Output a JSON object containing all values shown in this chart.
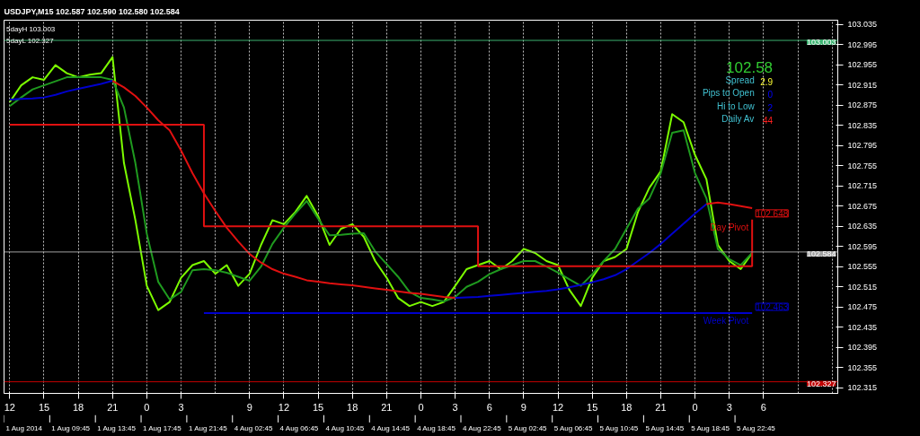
{
  "chart_data": {
    "type": "line",
    "title": "USDJPY,M15  102.587 102.590 102.580 102.584",
    "categories": [
      "12",
      null,
      null,
      "15",
      null,
      null,
      "18",
      null,
      null,
      "21",
      null,
      null,
      "0",
      null,
      null,
      "3",
      null,
      null,
      null,
      null,
      null,
      "9",
      null,
      null,
      "12",
      null,
      null,
      "15",
      null,
      null,
      "18",
      null,
      null,
      "21",
      null,
      null,
      "0",
      null,
      null,
      "3",
      null,
      null,
      "6",
      null,
      null,
      "9",
      null,
      null,
      "12",
      null,
      null,
      "15",
      null,
      null,
      "18",
      null,
      null,
      "21",
      null,
      null,
      "0",
      null,
      null,
      "3",
      null,
      null,
      "6",
      null,
      null,
      null,
      null,
      null,
      null
    ],
    "ylim": [
      102.304,
      103.043
    ],
    "yticks": [
      102.315,
      102.355,
      102.395,
      102.435,
      102.475,
      102.515,
      102.555,
      102.595,
      102.635,
      102.675,
      102.715,
      102.755,
      102.795,
      102.835,
      102.875,
      102.915,
      102.955,
      102.995,
      103.035
    ],
    "grid": "x",
    "line_style": "solid",
    "series": [
      {
        "color": "#7cfc00",
        "values": [
          102.881,
          102.914,
          102.93,
          102.925,
          102.954,
          102.938,
          102.93,
          102.935,
          102.938,
          102.97,
          102.76,
          102.647,
          102.517,
          102.469,
          102.485,
          102.533,
          102.558,
          102.566,
          102.541,
          102.558,
          102.517,
          102.541,
          102.598,
          102.647,
          102.639,
          102.663,
          102.695,
          102.655,
          102.598,
          102.63,
          102.639,
          102.614,
          102.566,
          102.533,
          102.493,
          102.477,
          102.485,
          102.477,
          102.485,
          102.517,
          102.55,
          102.558,
          102.566,
          102.55,
          102.566,
          102.59,
          102.582,
          102.566,
          102.558,
          102.509,
          102.477,
          102.533,
          102.566,
          102.574,
          102.59,
          102.663,
          102.711,
          102.744,
          102.857,
          102.841,
          102.776,
          102.728,
          102.598,
          102.566,
          102.55,
          102.582,
          null,
          null,
          null,
          null,
          null,
          null,
          null
        ]
      },
      {
        "color": "#1f9a1f",
        "values": [
          102.873,
          102.89,
          102.906,
          102.914,
          102.922,
          102.93,
          102.93,
          102.93,
          102.93,
          102.925,
          102.87,
          102.76,
          102.62,
          102.525,
          102.49,
          102.505,
          102.548,
          102.55,
          102.548,
          102.543,
          102.535,
          102.527,
          102.555,
          102.6,
          102.632,
          102.66,
          102.685,
          102.65,
          102.617,
          102.618,
          102.62,
          102.621,
          102.585,
          102.56,
          102.535,
          102.505,
          102.493,
          102.49,
          102.486,
          102.495,
          102.515,
          102.525,
          102.54,
          102.55,
          102.558,
          102.566,
          102.566,
          102.555,
          102.543,
          102.53,
          102.517,
          102.54,
          102.566,
          102.59,
          102.63,
          102.67,
          102.69,
          102.74,
          102.82,
          102.825,
          102.74,
          102.69,
          102.59,
          102.57,
          102.558,
          102.582,
          null,
          null,
          null,
          null,
          null,
          null,
          null
        ]
      },
      {
        "color": "#0000cd",
        "values": [
          102.886,
          102.887,
          102.888,
          102.89,
          102.895,
          102.902,
          102.907,
          102.912,
          102.917,
          102.923,
          null,
          null,
          null,
          null,
          null,
          null,
          null,
          null,
          null,
          null,
          null,
          null,
          null,
          null,
          null,
          null,
          null,
          null,
          null,
          null,
          null,
          null,
          null,
          null,
          null,
          null,
          null,
          null,
          null,
          102.493,
          102.494,
          102.495,
          102.497,
          102.499,
          102.501,
          102.503,
          102.505,
          102.507,
          102.51,
          102.514,
          102.519,
          102.524,
          102.53,
          102.538,
          102.55,
          102.566,
          102.582,
          102.6,
          102.62,
          102.64,
          102.66,
          102.679,
          null,
          null,
          null,
          null,
          null,
          null,
          null,
          null,
          null,
          null,
          null
        ]
      },
      {
        "color": "#e01010",
        "values": [
          null,
          null,
          null,
          null,
          null,
          null,
          null,
          null,
          null,
          102.923,
          102.91,
          102.893,
          102.87,
          102.845,
          102.825,
          102.785,
          102.74,
          102.7,
          102.665,
          102.632,
          102.605,
          102.58,
          102.563,
          102.55,
          102.541,
          102.535,
          102.528,
          102.525,
          102.522,
          102.52,
          102.518,
          102.515,
          102.512,
          102.509,
          102.506,
          102.503,
          102.501,
          102.498,
          102.495,
          102.493,
          null,
          null,
          null,
          null,
          null,
          null,
          null,
          null,
          null,
          null,
          null,
          null,
          null,
          null,
          null,
          null,
          null,
          null,
          null,
          null,
          null,
          102.679,
          102.682,
          102.679,
          102.675,
          102.671,
          null,
          null,
          null,
          null,
          null,
          null,
          null
        ]
      },
      {
        "type": "step",
        "color": "#e01010",
        "values": [
          102.836,
          102.836,
          102.836,
          102.836,
          102.836,
          102.836,
          102.836,
          102.836,
          102.836,
          102.836,
          102.836,
          102.836,
          102.836,
          102.836,
          102.836,
          102.836,
          102.836,
          102.635,
          102.635,
          102.635,
          102.635,
          102.635,
          102.635,
          102.635,
          102.635,
          102.635,
          102.635,
          102.635,
          102.635,
          102.635,
          102.635,
          102.635,
          102.635,
          102.635,
          102.635,
          102.635,
          102.635,
          102.635,
          102.635,
          102.635,
          102.635,
          102.556,
          102.556,
          102.556,
          102.556,
          102.556,
          102.556,
          102.556,
          102.556,
          102.556,
          102.556,
          102.556,
          102.556,
          102.556,
          102.556,
          102.556,
          102.556,
          102.556,
          102.556,
          102.556,
          102.556,
          102.556,
          102.556,
          102.556,
          102.556,
          102.648,
          null,
          null,
          null,
          null,
          null,
          null,
          null
        ]
      },
      {
        "type": "step",
        "color": "#0000cd",
        "values": [
          null,
          null,
          null,
          null,
          null,
          null,
          null,
          null,
          null,
          null,
          null,
          null,
          null,
          null,
          null,
          null,
          null,
          102.463,
          102.463,
          102.463,
          102.463,
          102.463,
          102.463,
          102.463,
          102.463,
          102.463,
          102.463,
          102.463,
          102.463,
          102.463,
          102.463,
          102.463,
          102.463,
          102.463,
          102.463,
          102.463,
          102.463,
          102.463,
          102.463,
          102.463,
          102.463,
          102.463,
          102.463,
          102.463,
          102.463,
          102.463,
          102.463,
          102.463,
          102.463,
          102.463,
          102.463,
          102.463,
          102.463,
          102.463,
          102.463,
          102.463,
          102.463,
          102.463,
          102.463,
          102.463,
          102.463,
          102.463,
          102.463,
          102.463,
          102.463,
          102.463,
          null,
          null,
          null,
          null,
          null,
          null,
          null
        ]
      }
    ],
    "ref_lines": [
      {
        "axis": "y",
        "value": 103.003,
        "label": "103.003",
        "color": "#3cb371"
      },
      {
        "axis": "y",
        "value": 102.327,
        "label": "102.327",
        "color": "#c00000"
      },
      {
        "axis": "y",
        "value": 102.584,
        "label": "102.584",
        "color": "#a0a0a0"
      }
    ],
    "annotations": [
      "5dayH 103.003",
      "5dayL 102.327",
      "102.58",
      "Spread",
      "2.9",
      "Pips to Open",
      "0",
      "Hi to Low",
      "2",
      "Daily Av",
      "44",
      "Day Pivot",
      "Week Pivot",
      "102.648",
      "102.463",
      "1 Aug 2014",
      "1 Aug 09:45",
      "1 Aug 13:45",
      "1 Aug 17:45",
      "1 Aug 21:45",
      "4 Aug 02:45",
      "4 Aug 06:45",
      "4 Aug 10:45",
      "4 Aug 14:45",
      "4 Aug 18:45",
      "4 Aug 22:45",
      "5 Aug 02:45",
      "5 Aug 06:45",
      "5 Aug 10:45",
      "5 Aug 14:45",
      "5 Aug 18:45",
      "5 Aug 22:45"
    ]
  }
}
